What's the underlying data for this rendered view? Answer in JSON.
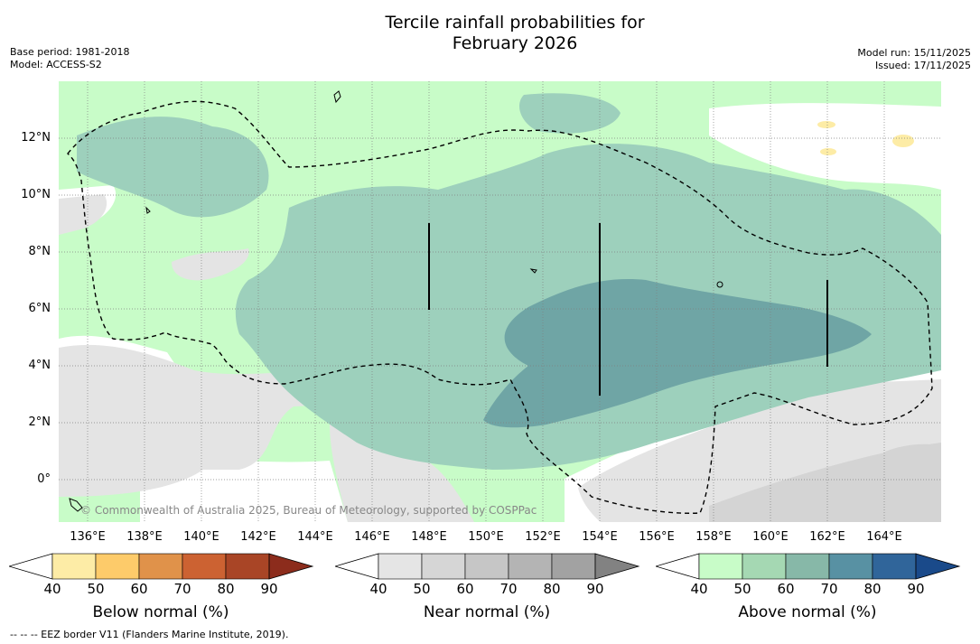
{
  "title_line1": "Tercile rainfall probabilities for",
  "title_line2": "February 2026",
  "meta_left": {
    "base_period": "Base period: 1981-2018",
    "model": "Model: ACCESS-S2"
  },
  "meta_right": {
    "model_run": "Model run: 15/11/2025",
    "issued": "Issued: 17/11/2025"
  },
  "lat_labels": [
    "12°N",
    "10°N",
    "8°N",
    "6°N",
    "4°N",
    "2°N",
    "0°"
  ],
  "lon_labels": [
    "136°E",
    "138°E",
    "140°E",
    "142°E",
    "144°E",
    "146°E",
    "148°E",
    "150°E",
    "152°E",
    "154°E",
    "156°E",
    "158°E",
    "160°E",
    "162°E",
    "164°E"
  ],
  "copyright": "© Commonwealth of Australia 2025, Bureau of Meteorology, supported by COSPPac",
  "footnote": "-- -- -- EEZ border V11 (Flanders Marine Institute, 2019).",
  "colorbars": {
    "below": {
      "title": "Below normal (%)",
      "ticks": [
        "40",
        "50",
        "60",
        "70",
        "80",
        "90"
      ],
      "colors": [
        "#ffffff",
        "#fdeca6",
        "#fdcb6a",
        "#e0924a",
        "#cc6232",
        "#a94526",
        "#8c2c1c"
      ]
    },
    "near": {
      "title": "Near normal (%)",
      "ticks": [
        "40",
        "50",
        "60",
        "70",
        "80",
        "90"
      ],
      "colors": [
        "#ffffff",
        "#e5e5e5",
        "#d6d6d6",
        "#c6c6c6",
        "#b4b4b4",
        "#a2a2a2",
        "#828282"
      ]
    },
    "above": {
      "title": "Above normal (%)",
      "ticks": [
        "40",
        "50",
        "60",
        "70",
        "80",
        "90"
      ],
      "colors": [
        "#ffffff",
        "#c8fcc8",
        "#a5d8b3",
        "#87b8a8",
        "#5891a3",
        "#30659a",
        "#1a4a8a"
      ]
    }
  }
}
